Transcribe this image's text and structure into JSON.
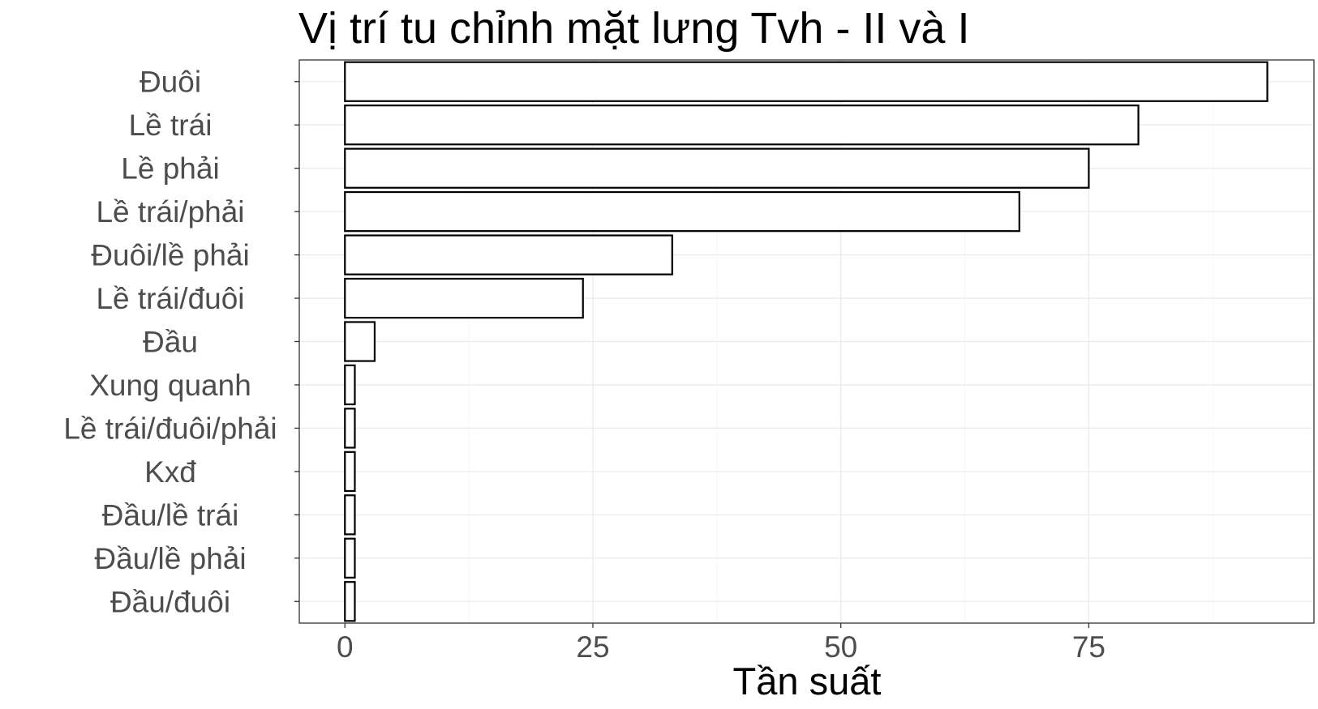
{
  "chart_data": {
    "type": "bar",
    "orientation": "horizontal",
    "title": "Vị trí tu chỉnh mặt lưng Tvh - II và I",
    "xlabel": "Tần suất",
    "ylabel": "",
    "categories": [
      "Đuôi",
      "Lề trái",
      "Lề phải",
      "Lề trái/phải",
      "Đuôi/lề phải",
      "Lề trái/đuôi",
      "Đầu",
      "Xung quanh",
      "Lề trái/đuôi/phải",
      "Kxđ",
      "Đầu/lề trái",
      "Đầu/lề phải",
      "Đầu/đuôi"
    ],
    "values": [
      93,
      80,
      75,
      68,
      33,
      24,
      3,
      1,
      1,
      1,
      1,
      1,
      1
    ],
    "xlim": [
      -4.6,
      97.7
    ],
    "xticks": [
      0,
      25,
      50,
      75
    ],
    "xtick_labels": [
      "0",
      "25",
      "50",
      "75"
    ],
    "grid": true,
    "legend": "none",
    "colors": {
      "bar_fill": "#ffffff",
      "bar_stroke": "#000000",
      "grid": "#ebebeb",
      "panel_border": "#333333",
      "label_text": "#4d4d4d"
    }
  }
}
